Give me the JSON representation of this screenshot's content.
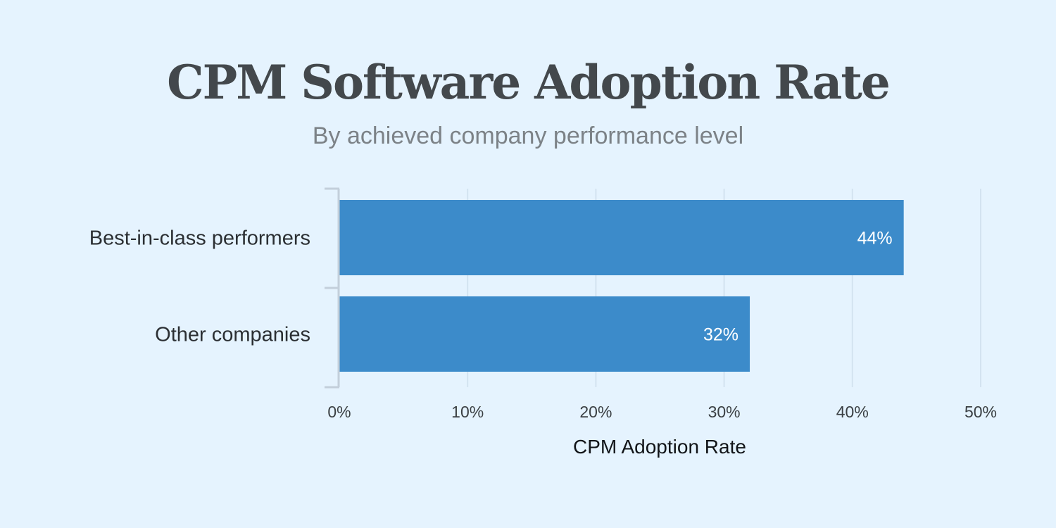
{
  "chart_data": {
    "type": "bar",
    "orientation": "horizontal",
    "title": "CPM Software Adoption Rate",
    "subtitle": "By achieved company performance level",
    "categories": [
      "Best-in-class performers",
      "Other companies"
    ],
    "values": [
      44,
      32
    ],
    "data_labels": [
      "44%",
      "32%"
    ],
    "xlabel": "CPM Adoption Rate",
    "ylabel": "",
    "xlim": [
      0,
      50
    ],
    "xticks": [
      0,
      10,
      20,
      30,
      40,
      50
    ],
    "xtick_labels": [
      "0%",
      "10%",
      "20%",
      "30%",
      "40%",
      "50%"
    ],
    "grid": true,
    "bar_color": "#3c8bca"
  }
}
